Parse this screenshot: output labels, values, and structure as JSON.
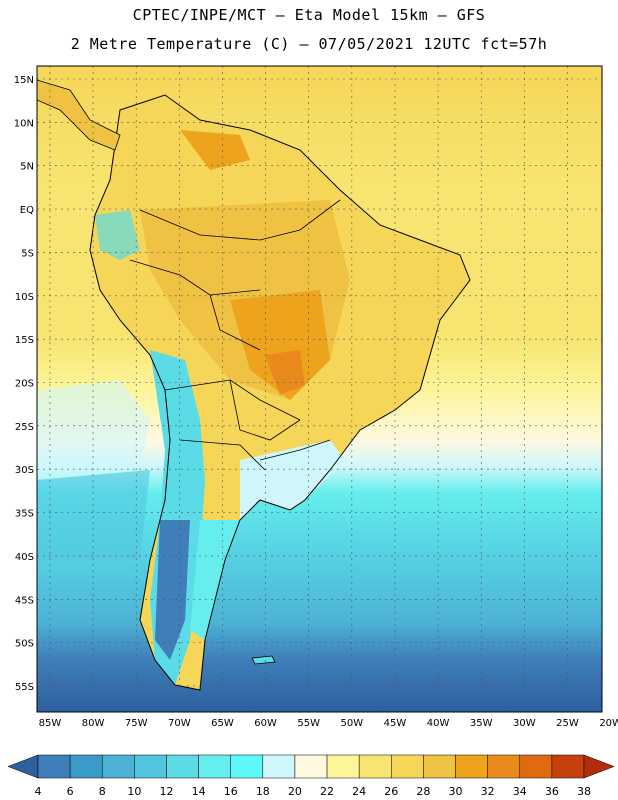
{
  "header": {
    "line1": "CPTEC/INPE/MCT –  Eta Model 15km – GFS",
    "line2": "2 Metre Temperature (C) – 07/05/2021 12UTC fct=57h"
  },
  "map": {
    "lat_labels": [
      "15N",
      "10N",
      "5N",
      "EQ",
      "5S",
      "10S",
      "15S",
      "20S",
      "25S",
      "30S",
      "35S",
      "40S",
      "45S",
      "50S",
      "55S"
    ],
    "lon_labels": [
      "85W",
      "80W",
      "75W",
      "70W",
      "65W",
      "60W",
      "55W",
      "50W",
      "45W",
      "40W",
      "35W",
      "30W",
      "25W",
      "20W"
    ],
    "lat_range": [
      -58,
      16.5
    ],
    "lon_range": [
      -86.5,
      -21
    ]
  },
  "colorbar": {
    "ticks": [
      "4",
      "6",
      "8",
      "10",
      "12",
      "14",
      "16",
      "18",
      "20",
      "22",
      "24",
      "26",
      "28",
      "30",
      "32",
      "34",
      "36",
      "38"
    ],
    "colors": [
      "#2e5f9e",
      "#3e7eb9",
      "#3b9ac8",
      "#4db3d6",
      "#52c6df",
      "#5bdbe6",
      "#66eeee",
      "#5ff8f8",
      "#cff7fb",
      "#fef9e0",
      "#fdf59a",
      "#f8e470",
      "#f5d658",
      "#f0c244",
      "#eea31c",
      "#ea8a1c",
      "#e06a10",
      "#c6400c",
      "#b22d08"
    ]
  }
}
